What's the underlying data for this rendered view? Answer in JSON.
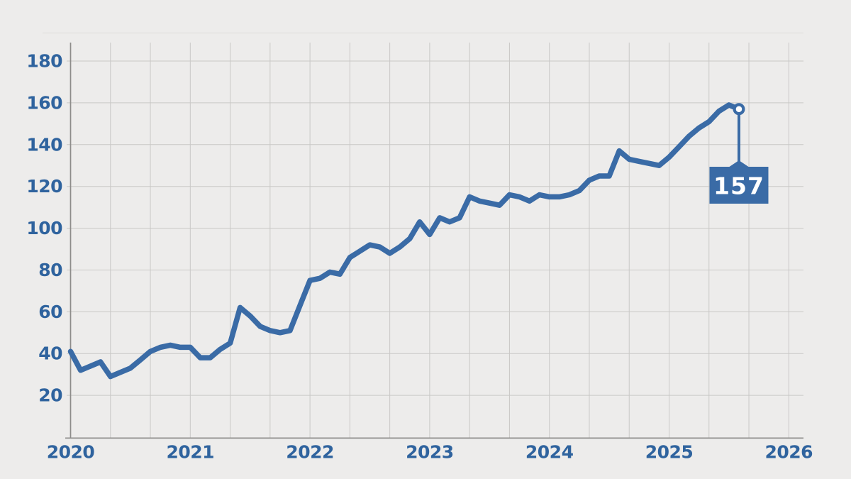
{
  "chart_data": {
    "type": "line",
    "title": "",
    "frequency": "monthly",
    "x_start": "2020-01",
    "x_end": "2025-08",
    "series": [
      {
        "name": "value",
        "values": [
          41,
          32,
          34,
          36,
          29,
          31,
          33,
          37,
          41,
          43,
          44,
          43,
          43,
          38,
          38,
          42,
          45,
          62,
          58,
          53,
          51,
          50,
          51,
          63,
          75,
          76,
          79,
          78,
          86,
          89,
          92,
          91,
          88,
          91,
          95,
          103,
          97,
          105,
          103,
          105,
          115,
          113,
          112,
          111,
          116,
          115,
          113,
          116,
          115,
          115,
          116,
          118,
          123,
          125,
          125,
          137,
          133,
          132,
          131,
          130,
          134,
          139,
          144,
          148,
          151,
          156,
          159,
          157
        ]
      }
    ],
    "x_tick_labels": [
      "2020",
      "2021",
      "2022",
      "2023",
      "2024",
      "2025",
      "2026"
    ],
    "y_tick_labels": [
      "20",
      "40",
      "60",
      "80",
      "100",
      "120",
      "140",
      "160",
      "180"
    ],
    "y_tick_values": [
      20,
      40,
      60,
      80,
      100,
      120,
      140,
      160,
      180
    ],
    "y_axis_range": [
      20,
      180
    ],
    "x_axis_range_years": [
      2020,
      2026
    ],
    "minor_x_gridlines_per_year": 3,
    "grid": "on",
    "legend": "none",
    "end_label": "157",
    "end_value": 157,
    "colors": {
      "line": "#3a6ba6",
      "axis_label_text": "#2f639e",
      "background": "#edeceb",
      "gridline": "#c9c8c6",
      "axis_line": "#8d8c8a",
      "top_border": "#dddcda",
      "callout_bg": "#3a6ba6",
      "callout_text": "#ffffff",
      "marker_fill": "#ffffff",
      "marker_ring": "#3a6ba6"
    }
  }
}
